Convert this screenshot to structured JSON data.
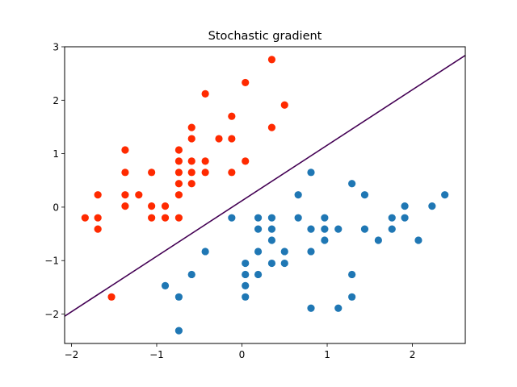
{
  "chart_data": {
    "type": "scatter",
    "title": "Stochastic gradient",
    "xlabel": "",
    "ylabel": "",
    "xlim": [
      -2.08,
      2.62
    ],
    "ylim": [
      -2.55,
      3.0
    ],
    "xticks": [
      -2,
      -1,
      0,
      1,
      2
    ],
    "yticks": [
      -2,
      -1,
      0,
      1,
      2,
      3
    ],
    "xtick_labels": [
      "−2",
      "−1",
      "0",
      "1",
      "2"
    ],
    "ytick_labels": [
      "−2",
      "−1",
      "0",
      "1",
      "2",
      "3"
    ],
    "grid": false,
    "legend": "none",
    "series": [
      {
        "color": "#ff2a00",
        "points": [
          [
            -1.84,
            -0.2
          ],
          [
            -1.69,
            0.23
          ],
          [
            -1.69,
            -0.2
          ],
          [
            -1.69,
            -0.41
          ],
          [
            -1.53,
            -1.68
          ],
          [
            -1.37,
            1.07
          ],
          [
            -1.37,
            0.65
          ],
          [
            -1.37,
            0.23
          ],
          [
            -1.37,
            0.02
          ],
          [
            -1.21,
            0.23
          ],
          [
            -1.06,
            0.65
          ],
          [
            -1.06,
            0.02
          ],
          [
            -1.06,
            -0.2
          ],
          [
            -0.9,
            0.02
          ],
          [
            -0.9,
            -0.2
          ],
          [
            -0.74,
            1.07
          ],
          [
            -0.74,
            0.86
          ],
          [
            -0.74,
            0.65
          ],
          [
            -0.74,
            0.44
          ],
          [
            -0.74,
            0.23
          ],
          [
            -0.74,
            -0.2
          ],
          [
            -0.59,
            1.49
          ],
          [
            -0.59,
            1.28
          ],
          [
            -0.59,
            0.86
          ],
          [
            -0.59,
            0.65
          ],
          [
            -0.59,
            0.44
          ],
          [
            -0.43,
            2.12
          ],
          [
            -0.43,
            0.86
          ],
          [
            -0.43,
            0.65
          ],
          [
            -0.27,
            1.28
          ],
          [
            -0.12,
            1.7
          ],
          [
            -0.12,
            1.28
          ],
          [
            -0.12,
            0.65
          ],
          [
            0.04,
            2.33
          ],
          [
            0.04,
            0.86
          ],
          [
            0.35,
            2.76
          ],
          [
            0.35,
            1.49
          ],
          [
            0.5,
            1.91
          ]
        ]
      },
      {
        "color": "#1f77b4",
        "points": [
          [
            -0.9,
            -1.47
          ],
          [
            -0.74,
            -1.68
          ],
          [
            -0.74,
            -2.31
          ],
          [
            -0.59,
            -1.26
          ],
          [
            -0.43,
            -0.83
          ],
          [
            -0.12,
            -0.2
          ],
          [
            0.04,
            -1.05
          ],
          [
            0.04,
            -1.26
          ],
          [
            0.04,
            -1.47
          ],
          [
            0.04,
            -1.68
          ],
          [
            0.19,
            -0.2
          ],
          [
            0.19,
            -0.41
          ],
          [
            0.19,
            -0.83
          ],
          [
            0.19,
            -1.26
          ],
          [
            0.35,
            -0.2
          ],
          [
            0.35,
            -0.41
          ],
          [
            0.35,
            -0.62
          ],
          [
            0.35,
            -1.05
          ],
          [
            0.5,
            -0.83
          ],
          [
            0.5,
            -1.05
          ],
          [
            0.66,
            0.23
          ],
          [
            0.66,
            -0.2
          ],
          [
            0.81,
            0.65
          ],
          [
            0.81,
            -0.41
          ],
          [
            0.81,
            -0.83
          ],
          [
            0.81,
            -1.89
          ],
          [
            0.97,
            -0.2
          ],
          [
            0.97,
            -0.41
          ],
          [
            0.97,
            -0.62
          ],
          [
            1.13,
            -0.41
          ],
          [
            1.13,
            -1.89
          ],
          [
            1.29,
            0.44
          ],
          [
            1.29,
            -1.26
          ],
          [
            1.29,
            -1.68
          ],
          [
            1.44,
            0.23
          ],
          [
            1.44,
            -0.41
          ],
          [
            1.6,
            -0.62
          ],
          [
            1.76,
            -0.2
          ],
          [
            1.76,
            -0.41
          ],
          [
            1.91,
            0.02
          ],
          [
            1.91,
            -0.2
          ],
          [
            2.07,
            -0.62
          ],
          [
            2.23,
            0.02
          ],
          [
            2.38,
            0.23
          ]
        ]
      }
    ],
    "decision_line": {
      "color": "#440154",
      "x": [
        -2.08,
        2.62
      ],
      "y": [
        -2.04,
        2.84
      ]
    }
  }
}
